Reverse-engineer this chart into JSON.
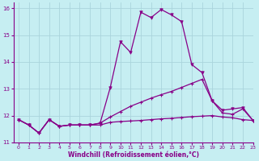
{
  "xlabel": "Windchill (Refroidissement éolien,°C)",
  "ylabel": "",
  "xlim": [
    -0.5,
    23
  ],
  "ylim": [
    11,
    16.2
  ],
  "yticks": [
    11,
    12,
    13,
    14,
    15,
    16
  ],
  "xticks": [
    0,
    1,
    2,
    3,
    4,
    5,
    6,
    7,
    8,
    9,
    10,
    11,
    12,
    13,
    14,
    15,
    16,
    17,
    18,
    19,
    20,
    21,
    22,
    23
  ],
  "bg_color": "#c6eef2",
  "grid_color": "#aad4dc",
  "line_color": "#880088",
  "hours": [
    0,
    1,
    2,
    3,
    4,
    5,
    6,
    7,
    8,
    9,
    10,
    11,
    12,
    13,
    14,
    15,
    16,
    17,
    18,
    19,
    20,
    21,
    22,
    23
  ],
  "line1": [
    11.85,
    11.65,
    11.35,
    11.85,
    11.6,
    11.65,
    11.65,
    11.65,
    11.65,
    11.75,
    11.78,
    11.8,
    11.82,
    11.85,
    11.88,
    11.9,
    11.93,
    11.96,
    11.98,
    12.0,
    11.95,
    11.92,
    11.85,
    11.82
  ],
  "line2": [
    11.85,
    11.65,
    11.35,
    11.85,
    11.6,
    11.65,
    11.65,
    11.65,
    11.72,
    11.95,
    12.15,
    12.35,
    12.5,
    12.65,
    12.78,
    12.9,
    13.05,
    13.2,
    13.35,
    12.55,
    12.1,
    12.05,
    12.25,
    11.82
  ],
  "line3": [
    11.85,
    11.65,
    11.35,
    11.85,
    11.6,
    11.65,
    11.65,
    11.65,
    11.72,
    13.05,
    14.75,
    14.35,
    15.85,
    15.65,
    15.95,
    15.75,
    15.5,
    13.9,
    13.6,
    12.55,
    12.2,
    12.25,
    12.3,
    11.82
  ]
}
